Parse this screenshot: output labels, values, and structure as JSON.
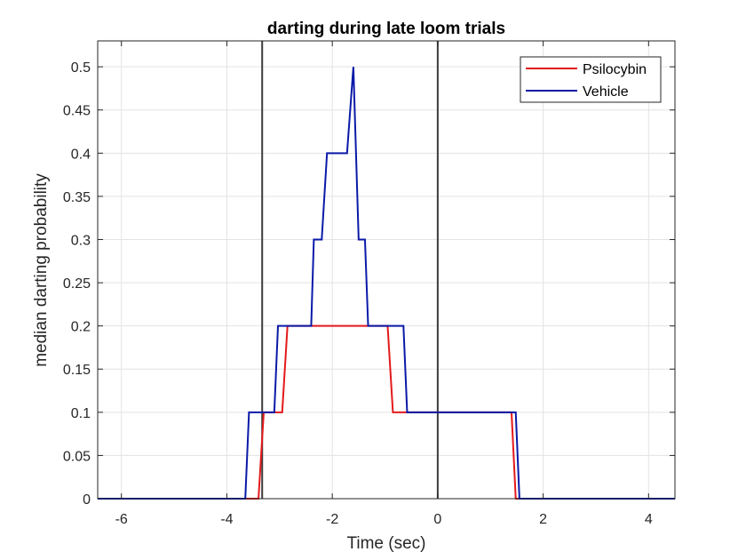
{
  "chart_data": {
    "type": "line",
    "title": "darting during late loom trials",
    "xlabel": "Time (sec)",
    "ylabel": "median darting probability",
    "xlim": [
      -6.45,
      4.5
    ],
    "ylim": [
      0,
      0.53
    ],
    "xticks": [
      -6,
      -4,
      -2,
      0,
      2,
      4
    ],
    "xtick_labels": [
      "-6",
      "-4",
      "-2",
      "0",
      "2",
      "4"
    ],
    "yticks": [
      0,
      0.05,
      0.1,
      0.15,
      0.2,
      0.25,
      0.3,
      0.35,
      0.4,
      0.45,
      0.5
    ],
    "ytick_labels": [
      "0",
      "0.05",
      "0.1",
      "0.15",
      "0.2",
      "0.25",
      "0.3",
      "0.35",
      "0.4",
      "0.45",
      "0.5"
    ],
    "grid": true,
    "legend_position": "top-right",
    "vertical_lines": [
      -3.33,
      0
    ],
    "series": [
      {
        "name": "Psilocybin",
        "color": "#e31a1c",
        "x": [
          -6.45,
          -3.4,
          -3.3,
          -2.95,
          -2.85,
          -0.95,
          -0.85,
          1.4,
          1.48,
          4.5
        ],
        "y": [
          0,
          0,
          0.1,
          0.1,
          0.2,
          0.2,
          0.1,
          0.1,
          0,
          0
        ]
      },
      {
        "name": "Vehicle",
        "color": "#0a1aa8",
        "x": [
          -6.45,
          -3.65,
          -3.58,
          -3.1,
          -3.03,
          -2.4,
          -2.35,
          -2.2,
          -2.1,
          -1.72,
          -1.6,
          -1.5,
          -1.38,
          -1.32,
          -0.65,
          -0.58,
          1.48,
          1.55,
          4.5
        ],
        "y": [
          0,
          0,
          0.1,
          0.1,
          0.2,
          0.2,
          0.3,
          0.3,
          0.4,
          0.4,
          0.5,
          0.3,
          0.3,
          0.2,
          0.2,
          0.1,
          0.1,
          0,
          0
        ]
      }
    ]
  }
}
